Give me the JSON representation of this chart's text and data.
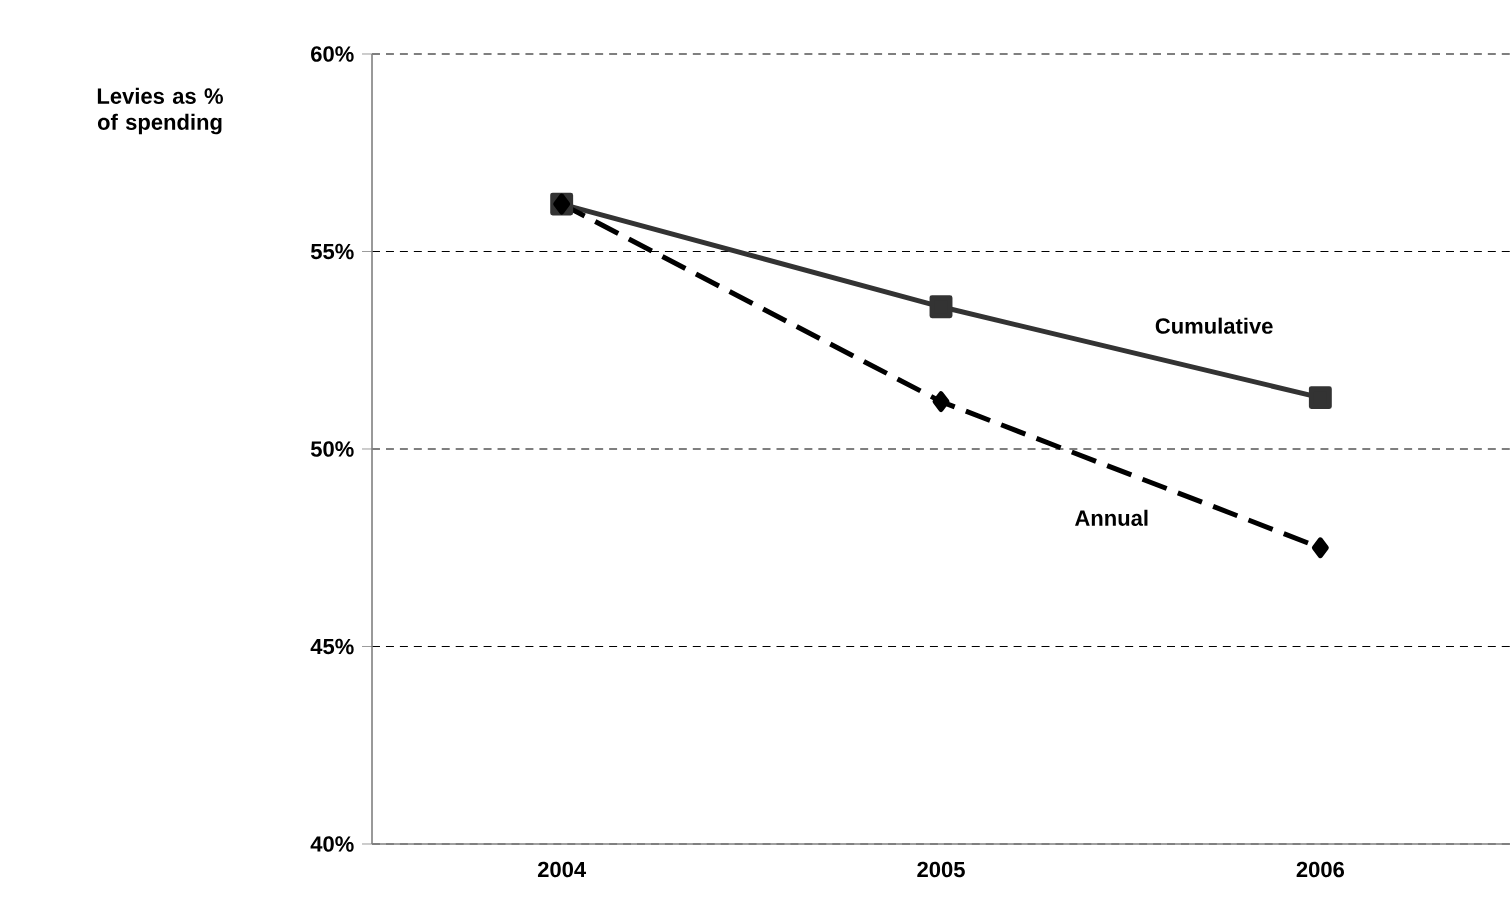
{
  "chart_data": {
    "type": "line",
    "ylabel": "Levies as % of spending",
    "categories": [
      "2004",
      "2005",
      "2006"
    ],
    "series": [
      {
        "name": "Cumulative",
        "color": "#333333",
        "values": [
          56.2,
          53.6,
          51.3
        ],
        "marker": "square",
        "line_style": "solid"
      },
      {
        "name": "Annual",
        "color": "#000000",
        "values": [
          56.2,
          51.2,
          47.5
        ],
        "marker": "diamond",
        "line_style": "dashed"
      }
    ],
    "ylim": [
      40,
      60
    ],
    "yticks": [
      {
        "value": 40,
        "label": "40%"
      },
      {
        "value": 45,
        "label": "45%"
      },
      {
        "value": 50,
        "label": "50%"
      },
      {
        "value": 55,
        "label": "55%"
      },
      {
        "value": 60,
        "label": "60%"
      }
    ],
    "grid": "y",
    "legend": false
  }
}
